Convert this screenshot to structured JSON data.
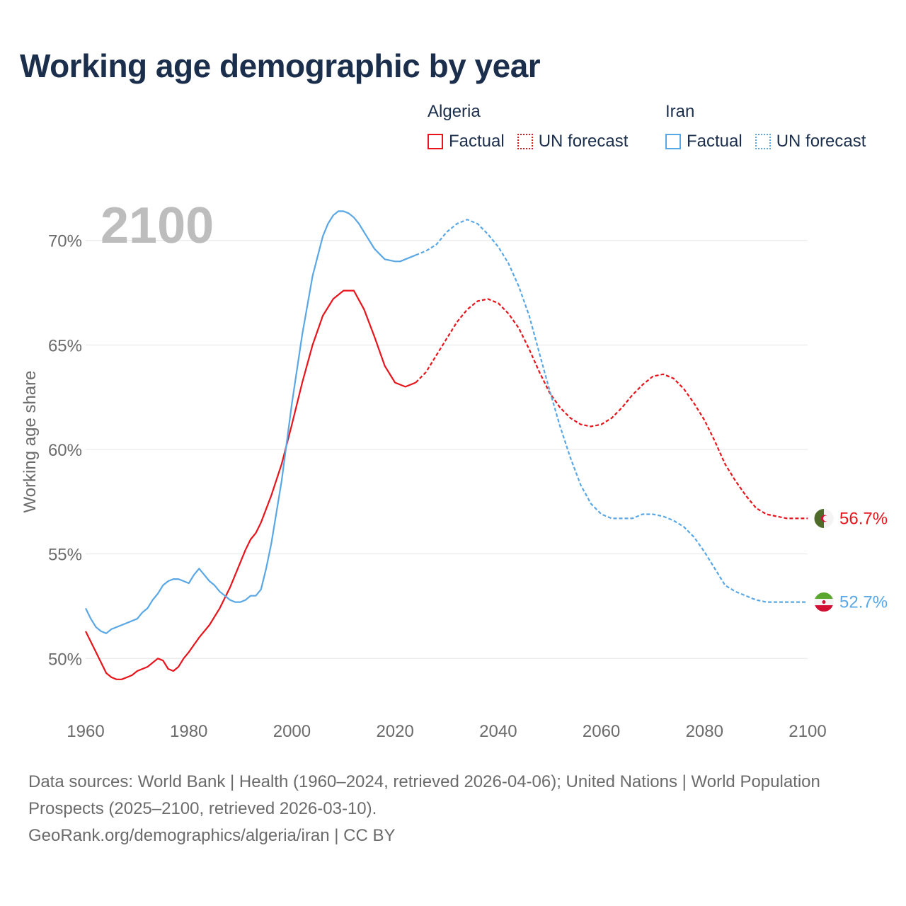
{
  "title": "Working age demographic by year",
  "legend": {
    "groups": [
      {
        "name": "Algeria",
        "factual_label": "Factual",
        "forecast_label": "UN forecast"
      },
      {
        "name": "Iran",
        "factual_label": "Factual",
        "forecast_label": "UN forecast"
      }
    ]
  },
  "footer": {
    "sources": "Data sources: World Bank | Health (1960–2024, retrieved 2026-04-06); United Nations | World Population Prospects (2025–2100, retrieved 2026-03-10).",
    "credit": "GeoRank.org/demographics/algeria/iran | CC BY"
  },
  "chart_data": {
    "type": "line",
    "title": "Working age demographic by year",
    "ylabel": "Working age share",
    "xlabel": "",
    "year_overlay": "2100",
    "xlim": [
      1960,
      2100
    ],
    "ylim": [
      47.3,
      72.7
    ],
    "x_ticks": [
      1960,
      1980,
      2000,
      2020,
      2040,
      2060,
      2080,
      2100
    ],
    "y_ticks": [
      50,
      55,
      60,
      65,
      70
    ],
    "y_tick_labels": [
      "50%",
      "55%",
      "60%",
      "65%",
      "70%"
    ],
    "grid": "horizontal",
    "factual_range": [
      1960,
      2024
    ],
    "forecast_range": [
      2024,
      2100
    ],
    "series": [
      {
        "name": "Algeria",
        "color": "#e8141b",
        "end_label": "56.7%",
        "flag": "algeria-flag",
        "x": [
          1960,
          1962,
          1964,
          1965,
          1966,
          1967,
          1968,
          1969,
          1970,
          1972,
          1974,
          1975,
          1976,
          1977,
          1978,
          1979,
          1980,
          1982,
          1984,
          1986,
          1988,
          1990,
          1991,
          1992,
          1993,
          1994,
          1996,
          1998,
          2000,
          2002,
          2004,
          2006,
          2008,
          2009,
          2010,
          2011,
          2012,
          2014,
          2016,
          2018,
          2020,
          2022,
          2024,
          2026,
          2028,
          2030,
          2032,
          2034,
          2036,
          2038,
          2040,
          2042,
          2044,
          2046,
          2048,
          2050,
          2052,
          2054,
          2056,
          2058,
          2060,
          2062,
          2064,
          2066,
          2068,
          2070,
          2072,
          2074,
          2076,
          2078,
          2080,
          2082,
          2084,
          2086,
          2088,
          2090,
          2092,
          2094,
          2096,
          2098,
          2100
        ],
        "values": [
          51.3,
          50.3,
          49.3,
          49.1,
          49.0,
          49.0,
          49.1,
          49.2,
          49.4,
          49.6,
          50.0,
          49.9,
          49.5,
          49.4,
          49.6,
          50.0,
          50.3,
          51.0,
          51.6,
          52.4,
          53.4,
          54.6,
          55.2,
          55.7,
          56.0,
          56.5,
          57.8,
          59.3,
          61.2,
          63.2,
          65.0,
          66.4,
          67.2,
          67.4,
          67.6,
          67.6,
          67.6,
          66.7,
          65.4,
          64.0,
          63.2,
          63.0,
          63.2,
          63.7,
          64.5,
          65.3,
          66.1,
          66.7,
          67.1,
          67.2,
          67.0,
          66.5,
          65.8,
          64.8,
          63.7,
          62.7,
          62.0,
          61.5,
          61.2,
          61.1,
          61.2,
          61.5,
          62.0,
          62.6,
          63.1,
          63.5,
          63.6,
          63.4,
          62.9,
          62.2,
          61.4,
          60.4,
          59.3,
          58.5,
          57.8,
          57.2,
          56.9,
          56.8,
          56.7,
          56.7,
          56.7
        ]
      },
      {
        "name": "Iran",
        "color": "#5aa7e5",
        "end_label": "52.7%",
        "flag": "iran-flag",
        "x": [
          1960,
          1961,
          1962,
          1963,
          1964,
          1965,
          1966,
          1968,
          1970,
          1971,
          1972,
          1973,
          1974,
          1975,
          1976,
          1977,
          1978,
          1979,
          1980,
          1981,
          1982,
          1983,
          1984,
          1985,
          1986,
          1987,
          1988,
          1989,
          1990,
          1991,
          1992,
          1993,
          1994,
          1995,
          1996,
          1998,
          2000,
          2002,
          2004,
          2006,
          2007,
          2008,
          2009,
          2010,
          2011,
          2012,
          2013,
          2014,
          2016,
          2018,
          2020,
          2021,
          2022,
          2024,
          2026,
          2028,
          2030,
          2032,
          2034,
          2036,
          2038,
          2040,
          2042,
          2044,
          2046,
          2048,
          2050,
          2052,
          2054,
          2056,
          2058,
          2060,
          2062,
          2064,
          2066,
          2068,
          2070,
          2072,
          2074,
          2076,
          2078,
          2080,
          2082,
          2084,
          2086,
          2088,
          2090,
          2092,
          2094,
          2096,
          2098,
          2100
        ],
        "values": [
          52.4,
          51.9,
          51.5,
          51.3,
          51.2,
          51.4,
          51.5,
          51.7,
          51.9,
          52.2,
          52.4,
          52.8,
          53.1,
          53.5,
          53.7,
          53.8,
          53.8,
          53.7,
          53.6,
          54.0,
          54.3,
          54.0,
          53.7,
          53.5,
          53.2,
          53.0,
          52.8,
          52.7,
          52.7,
          52.8,
          53.0,
          53.0,
          53.3,
          54.3,
          55.5,
          58.5,
          62.2,
          65.5,
          68.3,
          70.2,
          70.8,
          71.2,
          71.4,
          71.4,
          71.3,
          71.1,
          70.8,
          70.4,
          69.6,
          69.1,
          69.0,
          69.0,
          69.1,
          69.3,
          69.5,
          69.8,
          70.4,
          70.8,
          71.0,
          70.8,
          70.3,
          69.7,
          68.9,
          67.8,
          66.4,
          64.6,
          62.8,
          61.1,
          59.6,
          58.3,
          57.4,
          56.9,
          56.7,
          56.7,
          56.7,
          56.9,
          56.9,
          56.8,
          56.6,
          56.3,
          55.8,
          55.1,
          54.3,
          53.5,
          53.2,
          53.0,
          52.8,
          52.7,
          52.7,
          52.7,
          52.7,
          52.7
        ]
      }
    ]
  }
}
